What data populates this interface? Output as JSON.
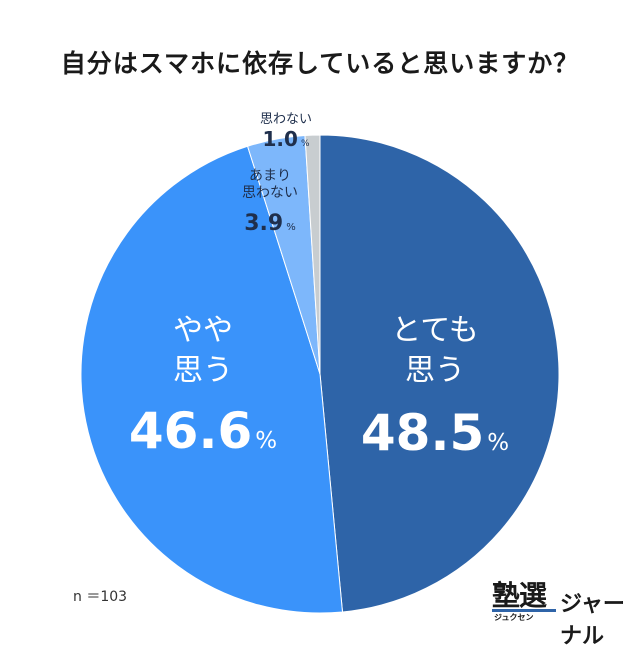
{
  "title": "自分はスマホに依存していると思いますか？",
  "sample_note": "n ＝103",
  "logo": {
    "main": "塾選",
    "sub": "ジュクセン",
    "name": "ジャーナル"
  },
  "colors": {
    "series": [
      "#2e64a8",
      "#3a93fa",
      "#7db7fb",
      "#c8cdd0"
    ],
    "label_light": "#ffffff",
    "label_dark": "#1f2f4c"
  },
  "chart_data": {
    "type": "pie",
    "title": "自分はスマホに依存していると思いますか？",
    "unit": "%",
    "start": "12 o'clock, clockwise",
    "slices": [
      {
        "label": "とても思う",
        "lines": [
          "とても",
          "思う"
        ],
        "value": 48.5,
        "display": "48.5",
        "unit": "%"
      },
      {
        "label": "やや思う",
        "lines": [
          "やや",
          "思う"
        ],
        "value": 46.6,
        "display": "46.6",
        "unit": "%"
      },
      {
        "label": "あまり思わない",
        "lines": [
          "あまり",
          "思わない"
        ],
        "value": 3.9,
        "display": "3.9",
        "unit": "%"
      },
      {
        "label": "思わない",
        "lines": [
          "思わない"
        ],
        "value": 1.0,
        "display": "1.0",
        "unit": "%"
      }
    ]
  }
}
